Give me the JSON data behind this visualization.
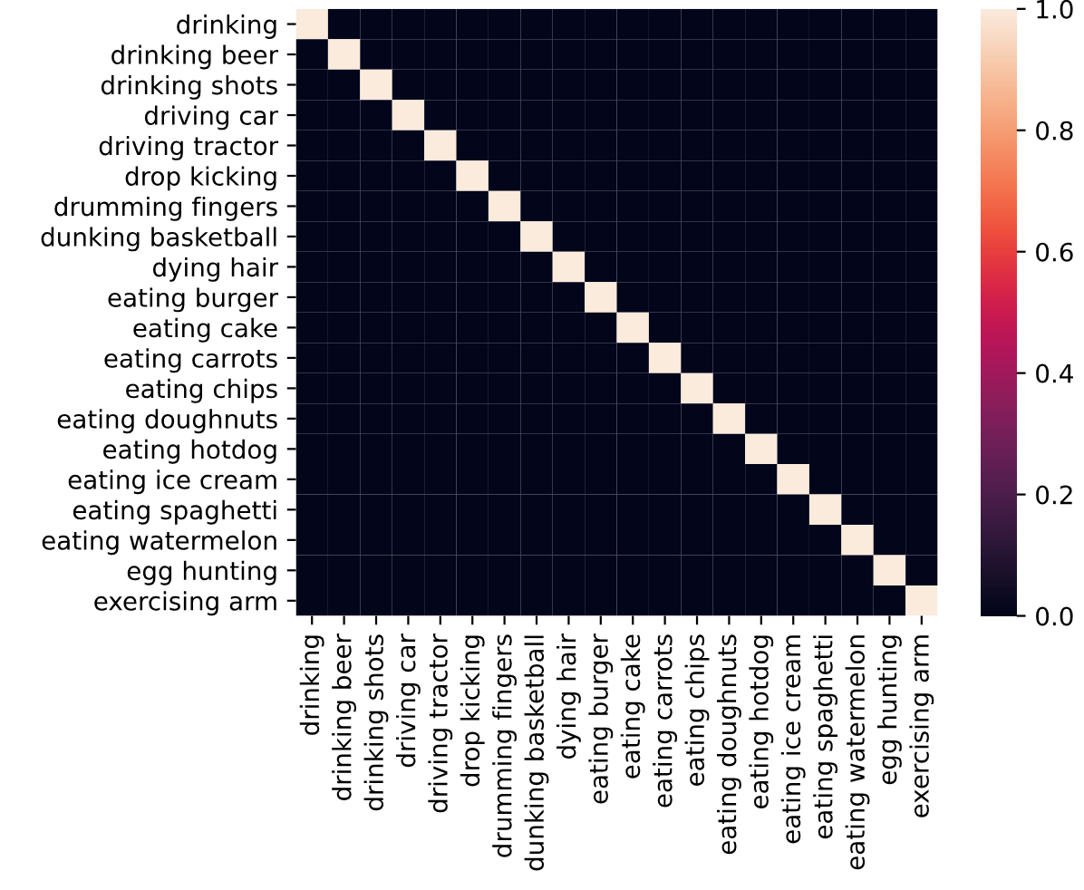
{
  "chart_data": {
    "type": "heatmap",
    "categories": [
      "drinking",
      "drinking beer",
      "drinking shots",
      "driving car",
      "driving tractor",
      "drop kicking",
      "drumming fingers",
      "dunking basketball",
      "dying hair",
      "eating burger",
      "eating cake",
      "eating carrots",
      "eating chips",
      "eating doughnuts",
      "eating hotdog",
      "eating ice cream",
      "eating spaghetti",
      "eating watermelon",
      "egg hunting",
      "exercising arm"
    ],
    "y_categories": [
      "drinking",
      "drinking beer",
      "drinking shots",
      "driving car",
      "driving tractor",
      "drop kicking",
      "drumming fingers",
      "dunking basketball",
      "dying hair",
      "eating burger",
      "eating cake",
      "eating carrots",
      "eating chips",
      "eating doughnuts",
      "eating hotdog",
      "eating ice cream",
      "eating spaghetti",
      "eating watermelon",
      "egg hunting",
      "exercising arm"
    ],
    "cells": [
      [
        1,
        0,
        0,
        0,
        0,
        0,
        0,
        0,
        0,
        0,
        0,
        0,
        0,
        0,
        0,
        0,
        0,
        0,
        0,
        0
      ],
      [
        0,
        1,
        0,
        0,
        0,
        0,
        0,
        0,
        0,
        0,
        0,
        0,
        0,
        0,
        0,
        0,
        0,
        0,
        0,
        0
      ],
      [
        0,
        0,
        1,
        0,
        0,
        0,
        0,
        0,
        0,
        0,
        0,
        0,
        0,
        0,
        0,
        0,
        0,
        0,
        0,
        0
      ],
      [
        0,
        0,
        0,
        1,
        0,
        0,
        0,
        0,
        0,
        0,
        0,
        0,
        0,
        0,
        0,
        0,
        0,
        0,
        0,
        0
      ],
      [
        0,
        0,
        0,
        0,
        1,
        0,
        0,
        0,
        0,
        0,
        0,
        0,
        0,
        0,
        0,
        0,
        0,
        0,
        0,
        0
      ],
      [
        0,
        0,
        0,
        0,
        0,
        1,
        0,
        0,
        0,
        0,
        0,
        0,
        0,
        0,
        0,
        0,
        0,
        0,
        0,
        0
      ],
      [
        0,
        0,
        0,
        0,
        0,
        0,
        1,
        0,
        0,
        0,
        0,
        0,
        0,
        0,
        0,
        0,
        0,
        0,
        0,
        0
      ],
      [
        0,
        0,
        0,
        0,
        0,
        0,
        0,
        1,
        0,
        0,
        0,
        0,
        0,
        0,
        0,
        0,
        0,
        0,
        0,
        0
      ],
      [
        0,
        0,
        0,
        0,
        0,
        0,
        0,
        0,
        1,
        0,
        0,
        0,
        0,
        0,
        0,
        0,
        0,
        0,
        0,
        0
      ],
      [
        0,
        0,
        0,
        0,
        0,
        0,
        0,
        0,
        0,
        1,
        0,
        0,
        0,
        0,
        0,
        0,
        0,
        0,
        0,
        0
      ],
      [
        0,
        0,
        0,
        0,
        0,
        0,
        0,
        0,
        0,
        0,
        1,
        0,
        0,
        0,
        0,
        0,
        0,
        0,
        0,
        0
      ],
      [
        0,
        0,
        0,
        0,
        0,
        0,
        0,
        0,
        0,
        0,
        0,
        1,
        0,
        0,
        0,
        0,
        0,
        0,
        0,
        0
      ],
      [
        0,
        0,
        0,
        0,
        0,
        0,
        0,
        0,
        0,
        0,
        0,
        0,
        1,
        0,
        0,
        0,
        0,
        0,
        0,
        0
      ],
      [
        0,
        0,
        0,
        0,
        0,
        0,
        0,
        0,
        0,
        0,
        0,
        0,
        0,
        1,
        0,
        0,
        0,
        0,
        0,
        0
      ],
      [
        0,
        0,
        0,
        0,
        0,
        0,
        0,
        0,
        0,
        0,
        0,
        0,
        0,
        0,
        1,
        0,
        0,
        0,
        0,
        0
      ],
      [
        0,
        0,
        0,
        0,
        0,
        0,
        0,
        0,
        0,
        0,
        0,
        0,
        0,
        0,
        0,
        1,
        0,
        0,
        0,
        0
      ],
      [
        0,
        0,
        0,
        0,
        0,
        0,
        0,
        0,
        0,
        0,
        0,
        0,
        0,
        0,
        0,
        0,
        1,
        0,
        0,
        0
      ],
      [
        0,
        0,
        0,
        0,
        0,
        0,
        0,
        0,
        0,
        0,
        0,
        0,
        0,
        0,
        0,
        0,
        0,
        1,
        0,
        0
      ],
      [
        0,
        0,
        0,
        0,
        0,
        0,
        0,
        0,
        0,
        0,
        0,
        0,
        0,
        0,
        0,
        0,
        0,
        0,
        1,
        0
      ],
      [
        0,
        0,
        0,
        0,
        0,
        0,
        0,
        0,
        0,
        0,
        0,
        0,
        0,
        0,
        0,
        0,
        0,
        0,
        0,
        1
      ]
    ],
    "clim": [
      0,
      1
    ],
    "cticks": [
      {
        "value": 0,
        "label": "0.0"
      },
      {
        "value": 0.2,
        "label": "0.2"
      },
      {
        "value": 0.4,
        "label": "0.4"
      },
      {
        "value": 0.6,
        "label": "0.6"
      },
      {
        "value": 0.8,
        "label": "0.8"
      },
      {
        "value": 1,
        "label": "1.0"
      }
    ]
  }
}
